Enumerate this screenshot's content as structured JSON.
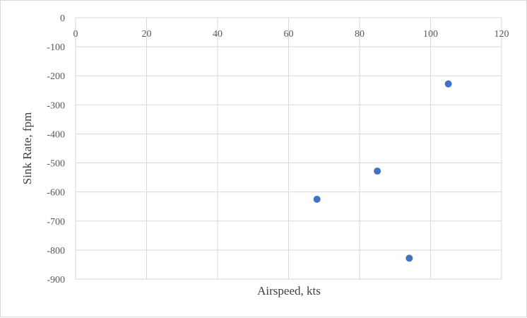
{
  "chart_data": {
    "type": "scatter",
    "title": "",
    "xlabel": "Airspeed, kts",
    "ylabel": "Sink Rate, fpm",
    "xlim": [
      0,
      120
    ],
    "ylim": [
      -900,
      0
    ],
    "xticks": [
      0,
      20,
      40,
      60,
      80,
      100,
      120
    ],
    "yticks": [
      0,
      -100,
      -200,
      -300,
      -400,
      -500,
      -600,
      -700,
      -800,
      -900
    ],
    "x_tick_position": "top",
    "grid": true,
    "legend": "none",
    "marker_color": "#4472c4",
    "gridline_color": "#d9d9d9",
    "series": [
      {
        "points": [
          {
            "x": 68,
            "y": -625
          },
          {
            "x": 85,
            "y": -528
          },
          {
            "x": 94,
            "y": -828
          },
          {
            "x": 105,
            "y": -228
          }
        ]
      }
    ]
  }
}
